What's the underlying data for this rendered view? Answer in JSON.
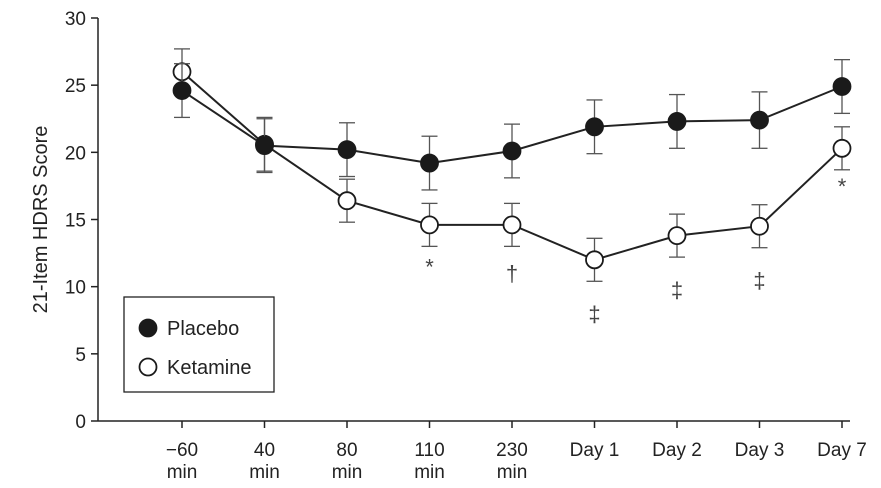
{
  "chart_data": {
    "type": "line",
    "ylabel": "21-Item HDRS Score",
    "xlabel": "",
    "ylim": [
      0,
      30
    ],
    "yticks": [
      "0",
      "5",
      "10",
      "15",
      "20",
      "25",
      "30"
    ],
    "categories": [
      [
        "−60",
        "min"
      ],
      [
        "40",
        "min"
      ],
      [
        "80",
        "min"
      ],
      [
        "110",
        "min"
      ],
      [
        "230",
        "min"
      ],
      [
        "Day 1"
      ],
      [
        "Day 2"
      ],
      [
        "Day 3"
      ],
      [
        "Day 7"
      ]
    ],
    "legend_position": "bottom-left",
    "series": [
      {
        "name": "Placebo",
        "marker": "filled-circle",
        "color": "#1a1a1a",
        "values": [
          24.6,
          20.5,
          20.2,
          19.2,
          20.1,
          21.9,
          22.3,
          22.4,
          24.9
        ],
        "error": [
          2.0,
          2.0,
          2.0,
          2.0,
          2.0,
          2.0,
          2.0,
          2.1,
          2.0
        ]
      },
      {
        "name": "Ketamine",
        "marker": "open-circle",
        "color": "#1a1a1a",
        "values": [
          26.0,
          20.6,
          16.4,
          14.6,
          14.6,
          12.0,
          13.8,
          14.5,
          20.3
        ],
        "error": [
          1.7,
          2.0,
          1.6,
          1.6,
          1.6,
          1.6,
          1.6,
          1.6,
          1.6
        ]
      }
    ],
    "significance_marks": [
      {
        "index": 3,
        "symbol": "*",
        "y": 11.5
      },
      {
        "index": 4,
        "symbol": "†",
        "y": 11.0
      },
      {
        "index": 5,
        "symbol": "‡",
        "y": 8.0
      },
      {
        "index": 6,
        "symbol": "‡",
        "y": 9.8
      },
      {
        "index": 7,
        "symbol": "‡",
        "y": 10.5
      },
      {
        "index": 8,
        "symbol": "*",
        "y": 17.5
      }
    ]
  }
}
